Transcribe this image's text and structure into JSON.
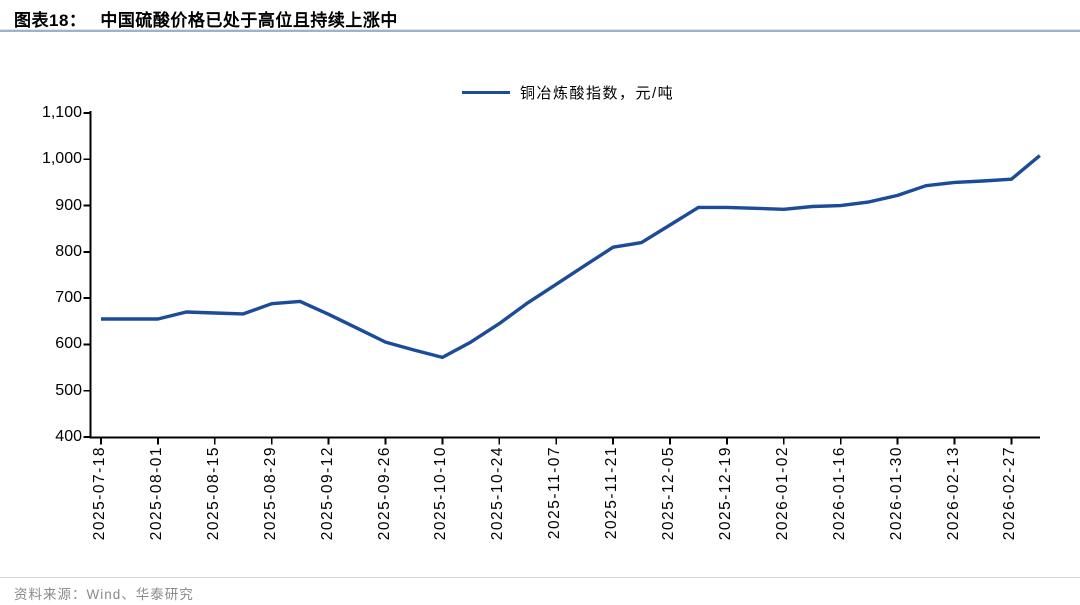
{
  "header": {
    "title_prefix": "图表18：",
    "title": "中国硫酸价格已处于高位且持续上涨中"
  },
  "legend": {
    "label": "铜冶炼酸指数，元/吨"
  },
  "footer": {
    "source": "资料来源：Wind、华泰研究"
  },
  "colors": {
    "line": "#1c4b97",
    "axis": "#000000",
    "title_rule": "#9fb2cc",
    "footer_rule": "#d8d8d8",
    "source_text": "#8a8a8a"
  },
  "chart_data": {
    "type": "line",
    "title": "中国硫酸价格已处于高位且持续上涨中",
    "xlabel": "",
    "ylabel": "",
    "unit": "元/吨",
    "grid": false,
    "legend_position": "top-center",
    "ylim": [
      400,
      1100
    ],
    "yticks": [
      400,
      500,
      600,
      700,
      800,
      900,
      1000,
      1100
    ],
    "xtick_labels": [
      "2025-07-18",
      "2025-08-01",
      "2025-08-15",
      "2025-08-29",
      "2025-09-12",
      "2025-09-26",
      "2025-10-10",
      "2025-10-24",
      "2025-11-07",
      "2025-11-21",
      "2025-12-05",
      "2025-12-19",
      "2026-01-02",
      "2026-01-16",
      "2026-01-30",
      "2026-02-13",
      "2026-02-27"
    ],
    "x": [
      "2025-07-18",
      "2025-07-25",
      "2025-08-01",
      "2025-08-08",
      "2025-08-15",
      "2025-08-22",
      "2025-08-29",
      "2025-09-05",
      "2025-09-12",
      "2025-09-19",
      "2025-09-26",
      "2025-10-03",
      "2025-10-10",
      "2025-10-17",
      "2025-10-24",
      "2025-10-31",
      "2025-11-07",
      "2025-11-14",
      "2025-11-21",
      "2025-11-28",
      "2025-12-05",
      "2025-12-12",
      "2025-12-19",
      "2025-12-26",
      "2026-01-02",
      "2026-01-09",
      "2026-01-16",
      "2026-01-23",
      "2026-01-30",
      "2026-02-06",
      "2026-02-13",
      "2026-02-20",
      "2026-02-27",
      "2026-03-06"
    ],
    "series": [
      {
        "name": "铜冶炼酸指数，元/吨",
        "values": [
          655,
          655,
          655,
          670,
          668,
          666,
          688,
          693,
          665,
          635,
          605,
          588,
          572,
          605,
          645,
          690,
          730,
          770,
          810,
          820,
          858,
          896,
          896,
          894,
          892,
          898,
          900,
          908,
          922,
          943,
          950,
          953,
          957,
          1008
        ]
      }
    ]
  }
}
